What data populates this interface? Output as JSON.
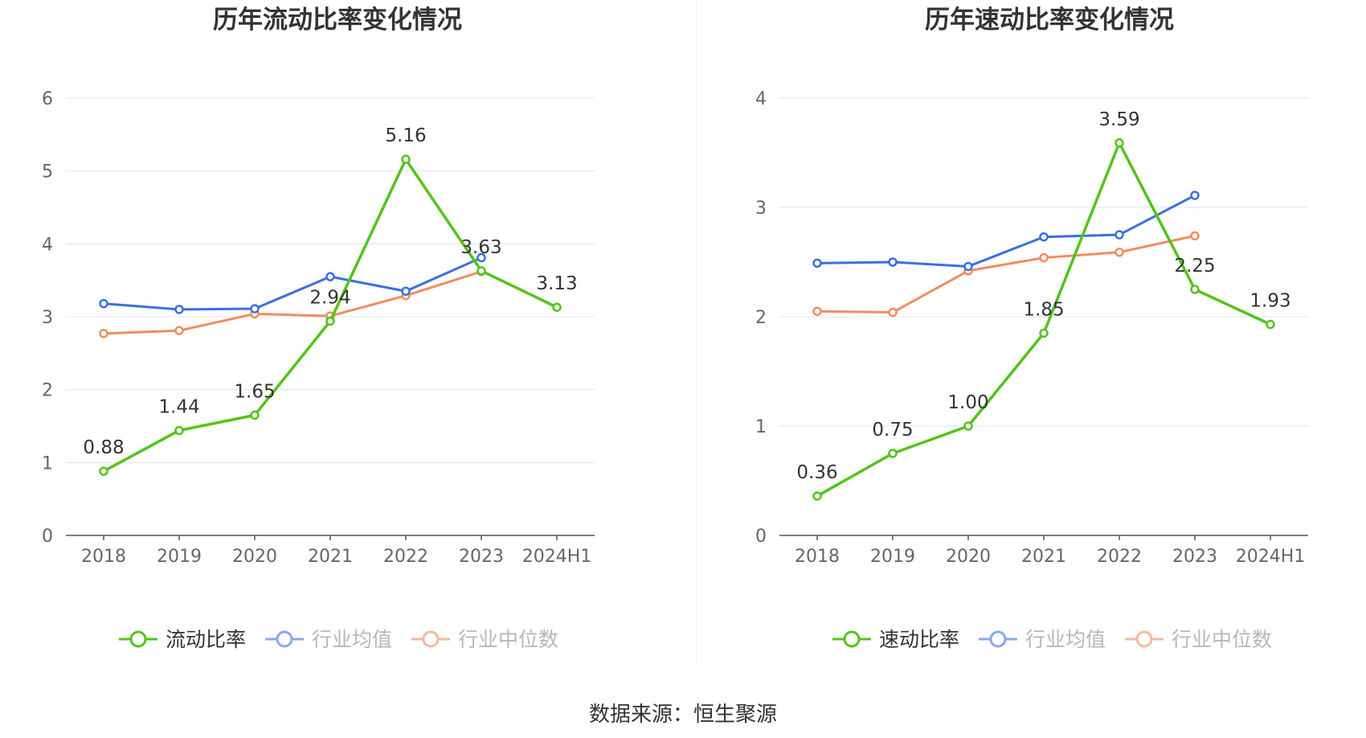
{
  "source_text": "数据来源：恒生聚源",
  "colors": {
    "main": "#52c41a",
    "avg": "#3b6fe0",
    "median": "#f28c5e",
    "grid": "#e0e3f5",
    "axis": "#666666",
    "text": "#333333"
  },
  "chart_data": [
    {
      "type": "line",
      "title": "历年流动比率变化情况",
      "categories": [
        "2018",
        "2019",
        "2020",
        "2021",
        "2022",
        "2023",
        "2024H1"
      ],
      "ylim": [
        0,
        6
      ],
      "yticks": [
        "0",
        "1",
        "2",
        "3",
        "4",
        "5",
        "6"
      ],
      "grid": true,
      "legend_position": "bottom",
      "series": [
        {
          "name": "流动比率",
          "values": [
            0.88,
            1.44,
            1.65,
            2.94,
            5.16,
            3.63,
            3.13
          ],
          "labels": [
            "0.88",
            "1.44",
            "1.65",
            "2.94",
            "5.16",
            "3.63",
            "3.13"
          ],
          "color": "#52c41a"
        },
        {
          "name": "行业均值",
          "values": [
            3.18,
            3.1,
            3.11,
            3.55,
            3.35,
            3.81,
            null
          ],
          "color": "#3b6fe0"
        },
        {
          "name": "行业中位数",
          "values": [
            2.77,
            2.81,
            3.04,
            3.01,
            3.29,
            3.62,
            null
          ],
          "color": "#f28c5e"
        }
      ]
    },
    {
      "type": "line",
      "title": "历年速动比率变化情况",
      "categories": [
        "2018",
        "2019",
        "2020",
        "2021",
        "2022",
        "2023",
        "2024H1"
      ],
      "ylim": [
        0,
        4
      ],
      "yticks": [
        "0",
        "1",
        "2",
        "3",
        "4"
      ],
      "grid": true,
      "legend_position": "bottom",
      "series": [
        {
          "name": "速动比率",
          "values": [
            0.36,
            0.75,
            1.0,
            1.85,
            3.59,
            2.25,
            1.93
          ],
          "labels": [
            "0.36",
            "0.75",
            "1.00",
            "1.85",
            "3.59",
            "2.25",
            "1.93"
          ],
          "color": "#52c41a"
        },
        {
          "name": "行业均值",
          "values": [
            2.49,
            2.5,
            2.46,
            2.73,
            2.75,
            3.11,
            null
          ],
          "color": "#3b6fe0"
        },
        {
          "name": "行业中位数",
          "values": [
            2.05,
            2.04,
            2.42,
            2.54,
            2.59,
            2.74,
            null
          ],
          "color": "#f28c5e"
        }
      ]
    }
  ]
}
